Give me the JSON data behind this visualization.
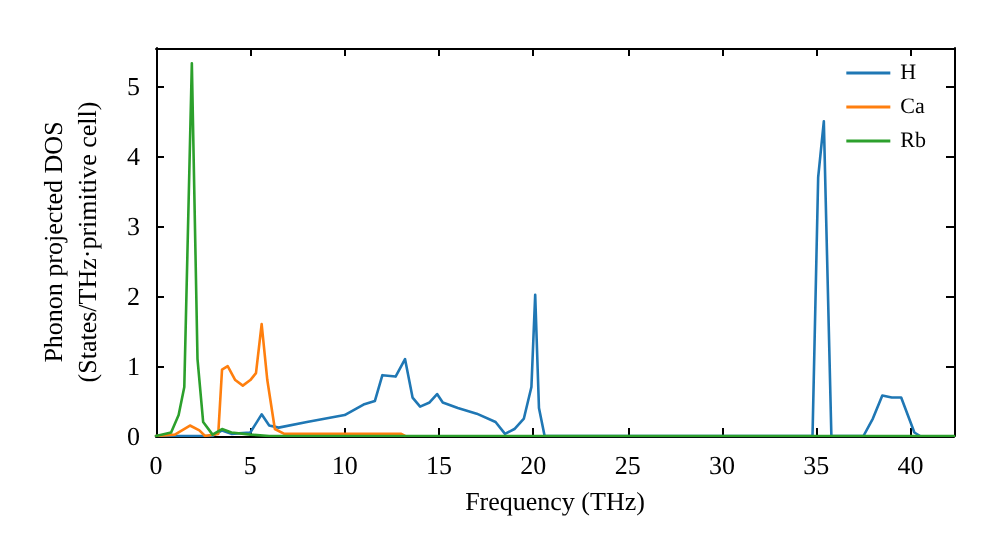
{
  "chart_data": {
    "type": "line",
    "xlabel": "Frequency (THz)",
    "ylabel": "Phonon projected DOS\n(States/THz·primitive cell)",
    "xlim": [
      0,
      42.3
    ],
    "ylim": [
      0,
      5.55
    ],
    "xticks": [
      0,
      5,
      10,
      15,
      20,
      25,
      30,
      35,
      40
    ],
    "yticks": [
      0,
      1,
      2,
      3,
      4,
      5
    ],
    "grid": false,
    "legend": "top right",
    "marker": "none",
    "line_style": "solid",
    "series": [
      {
        "name": "H",
        "color": "#1f77b4",
        "x": [
          0,
          3,
          3.5,
          4,
          5,
          5.6,
          6,
          6.5,
          8,
          10,
          11,
          11.6,
          12,
          12.7,
          13.2,
          13.6,
          14,
          14.5,
          14.9,
          15.2,
          16,
          17,
          18,
          18.5,
          19,
          19.5,
          19.9,
          20.1,
          20.3,
          20.6,
          34.8,
          35.1,
          35.4,
          35.8,
          37.5,
          38,
          38.5,
          39,
          39.5,
          40.2,
          40.5
        ],
        "values": [
          0,
          0,
          0.08,
          0.03,
          0.05,
          0.31,
          0.15,
          0.12,
          0.2,
          0.3,
          0.45,
          0.5,
          0.87,
          0.85,
          1.1,
          0.55,
          0.42,
          0.48,
          0.6,
          0.48,
          0.4,
          0.32,
          0.2,
          0.03,
          0.1,
          0.25,
          0.7,
          2.02,
          0.4,
          0,
          0,
          3.7,
          4.5,
          0,
          0,
          0.25,
          0.58,
          0.55,
          0.55,
          0.05,
          0
        ]
      },
      {
        "name": "Ca",
        "color": "#ff7f0e",
        "x": [
          0,
          1,
          1.8,
          2.3,
          2.6,
          3.3,
          3.5,
          3.8,
          4.2,
          4.6,
          5,
          5.3,
          5.6,
          5.9,
          6.3,
          6.8,
          13,
          13.2
        ],
        "values": [
          0,
          0.02,
          0.15,
          0.08,
          0,
          0.03,
          0.95,
          1.0,
          0.8,
          0.72,
          0.8,
          0.9,
          1.6,
          0.8,
          0.1,
          0.03,
          0.03,
          0
        ]
      },
      {
        "name": "Rb",
        "color": "#2ca02c",
        "x": [
          0,
          0.8,
          1.2,
          1.5,
          1.9,
          2.2,
          2.5,
          3,
          3.5,
          4,
          5,
          6,
          42.3
        ],
        "values": [
          0,
          0.05,
          0.3,
          0.7,
          5.33,
          1.1,
          0.2,
          0.02,
          0.1,
          0.05,
          0.02,
          0,
          0
        ]
      }
    ]
  }
}
